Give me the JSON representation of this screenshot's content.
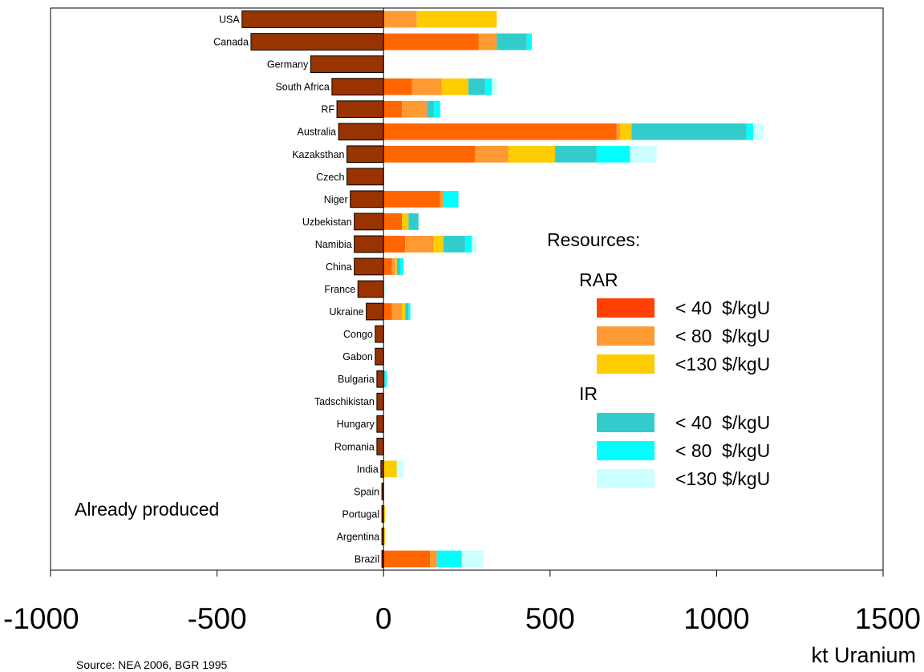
{
  "chart_data": {
    "type": "bar",
    "orientation": "horizontal",
    "stacked": true,
    "xlim": [
      -1000,
      1500
    ],
    "xticks": [
      -1000,
      -500,
      0,
      500,
      1000,
      1500
    ],
    "xlabel": "kt Uranium",
    "source": "Source: NEA 2006, BGR 1995",
    "annotation": "Already produced",
    "legend": {
      "title": "Resources:",
      "groups": [
        {
          "name": "RAR",
          "items": [
            "< 40  $/kgU",
            "< 80  $/kgU",
            "<130 $/kgU"
          ]
        },
        {
          "name": "IR",
          "items": [
            "< 40  $/kgU",
            "< 80  $/kgU",
            "<130 $/kgU"
          ]
        }
      ],
      "placement": "right"
    },
    "colors": {
      "produced": "#993300",
      "RAR <40": "#FF6600",
      "RAR <80": "#FF9933",
      "RAR <130": "#FFCC00",
      "IR <40": "#33CCCC",
      "IR <80": "#00FFFF",
      "IR <130": "#CCFFFF"
    },
    "legend_swatch_colors": [
      "#FF4000",
      "#FF9933",
      "#FFCC00",
      "#33CCCC",
      "#00FFFF",
      "#CCFFFF"
    ],
    "categories": [
      "USA",
      "Canada",
      "Germany",
      "South Africa",
      "RF",
      "Australia",
      "Kazaksthan",
      "Czech",
      "Niger",
      "Uzbekistan",
      "Namibia",
      "China",
      "France",
      "Ukraine",
      "Congo",
      "Gabon",
      "Bulgaria",
      "Tadschikistan",
      "Hungary",
      "Romania",
      "India",
      "Spain",
      "Portugal",
      "Argentina",
      "Brazil"
    ],
    "series": [
      {
        "key": "produced",
        "values": [
          -425,
          -398,
          -219,
          -155,
          -140,
          -135,
          -110,
          -110,
          -100,
          -88,
          -88,
          -88,
          -77,
          -52,
          -25,
          -25,
          -20,
          -20,
          -20,
          -20,
          -8,
          -5,
          -5,
          -5,
          -5
        ]
      },
      {
        "key": "RAR <40",
        "values": [
          0,
          285,
          0,
          85,
          55,
          700,
          275,
          0,
          170,
          55,
          65,
          25,
          0,
          25,
          0,
          0,
          0,
          0,
          0,
          0,
          0,
          0,
          0,
          0,
          140
        ]
      },
      {
        "key": "RAR <80",
        "values": [
          100,
          55,
          0,
          90,
          75,
          10,
          100,
          0,
          10,
          0,
          85,
          10,
          0,
          30,
          0,
          0,
          0,
          0,
          0,
          0,
          0,
          0,
          0,
          0,
          20
        ]
      },
      {
        "key": "RAR <130",
        "values": [
          240,
          0,
          0,
          80,
          0,
          35,
          140,
          0,
          0,
          20,
          30,
          5,
          0,
          10,
          0,
          0,
          0,
          0,
          0,
          0,
          40,
          0,
          5,
          5,
          0
        ]
      },
      {
        "key": "IR <40",
        "values": [
          0,
          90,
          0,
          50,
          20,
          345,
          125,
          0,
          0,
          30,
          65,
          10,
          0,
          10,
          0,
          0,
          5,
          0,
          0,
          0,
          0,
          0,
          0,
          0,
          0
        ]
      },
      {
        "key": "IR <80",
        "values": [
          0,
          15,
          0,
          20,
          20,
          20,
          100,
          0,
          45,
          0,
          20,
          10,
          0,
          5,
          0,
          0,
          5,
          0,
          0,
          0,
          0,
          0,
          0,
          0,
          75
        ]
      },
      {
        "key": "IR <130",
        "values": [
          0,
          0,
          0,
          15,
          0,
          30,
          80,
          0,
          0,
          0,
          15,
          0,
          5,
          5,
          0,
          0,
          0,
          0,
          0,
          0,
          20,
          0,
          0,
          0,
          65
        ]
      }
    ]
  }
}
